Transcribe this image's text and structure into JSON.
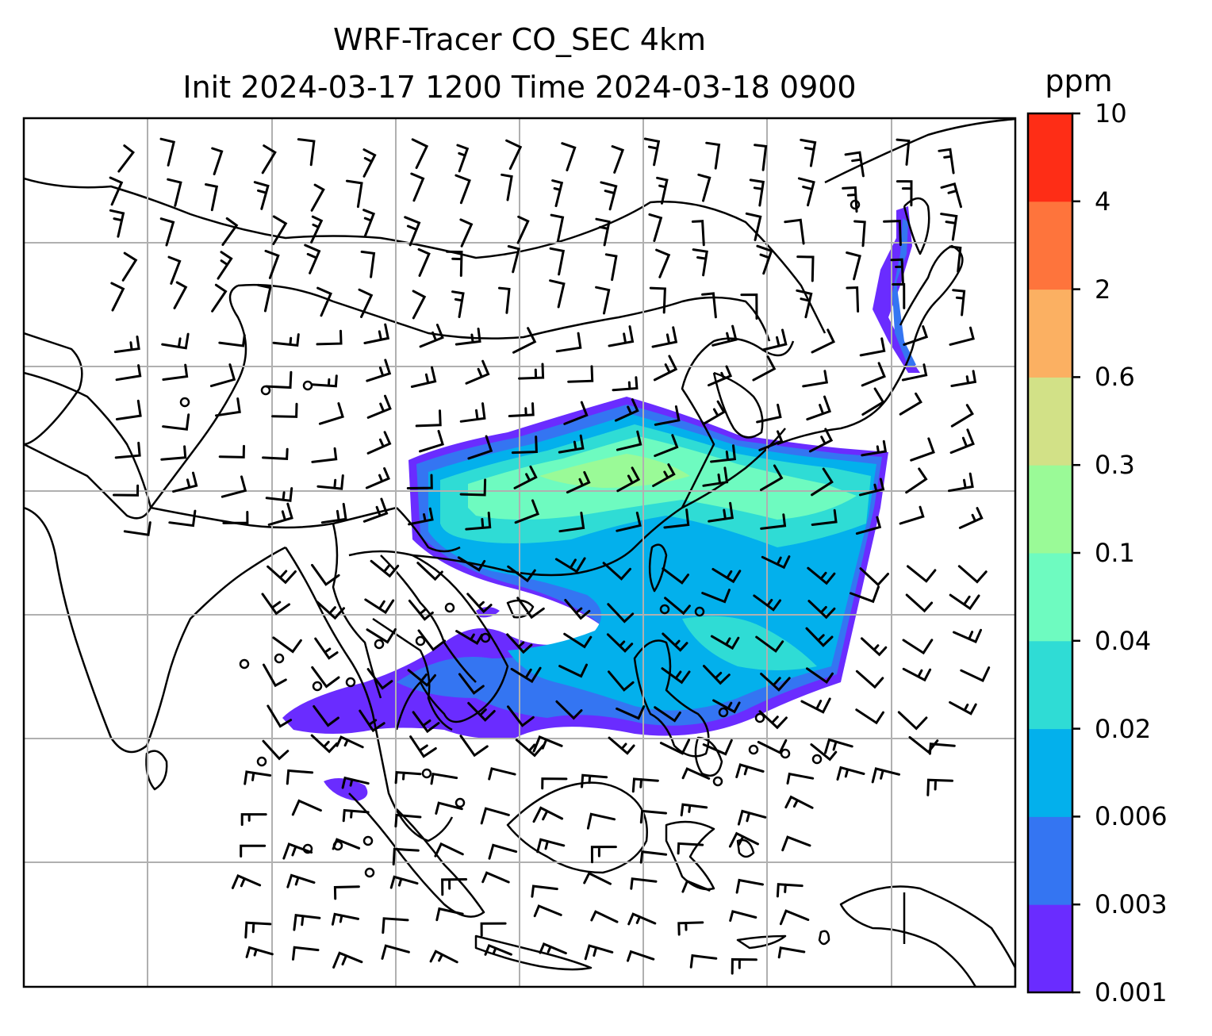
{
  "title": {
    "line1": "WRF-Tracer CO_SEC 4km",
    "line2": "Init 2024-03-17 1200 Time 2024-03-18 0900"
  },
  "colorbar": {
    "unit": "ppm",
    "ticks": [
      "0.001",
      "0.003",
      "0.006",
      "0.02",
      "0.04",
      "0.1",
      "0.3",
      "0.6",
      "2",
      "4",
      "10"
    ],
    "colors": [
      "#6a2cff",
      "#3475f2",
      "#03b0ec",
      "#2fdcd5",
      "#6efbc0",
      "#9afa97",
      "#d2e187",
      "#fbb062",
      "#fe743c",
      "#fe2d16"
    ]
  },
  "map": {
    "gridlines": true,
    "tracer_field": "CO_SEC",
    "overlay": "wind barbs",
    "coastline_color": "#000000",
    "grid_color": "#b0b0b0"
  }
}
